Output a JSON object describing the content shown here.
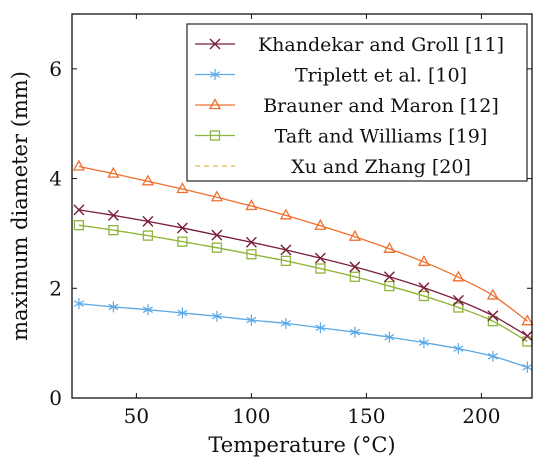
{
  "chart_data": {
    "type": "line",
    "xlabel": "Temperature (°C)",
    "ylabel": "maximum diameter (mm)",
    "xlim": [
      22,
      222
    ],
    "ylim": [
      0,
      7
    ],
    "xticks": [
      50,
      100,
      150,
      200
    ],
    "yticks": [
      0,
      2,
      4,
      6
    ],
    "grid": false,
    "legend_position": "top-right",
    "x": [
      25,
      40,
      55,
      70,
      85,
      100,
      115,
      130,
      145,
      160,
      175,
      190,
      205,
      220
    ],
    "series": [
      {
        "name": "Khandekar and Groll [11]",
        "color": "#7b1e3a",
        "marker": "x",
        "values": [
          3.43,
          3.33,
          3.22,
          3.1,
          2.97,
          2.84,
          2.7,
          2.55,
          2.39,
          2.21,
          2.01,
          1.78,
          1.5,
          1.13
        ]
      },
      {
        "name": "Triplett et al. [10]",
        "color": "#5aa9e6",
        "marker": "star",
        "values": [
          1.72,
          1.66,
          1.61,
          1.55,
          1.49,
          1.42,
          1.36,
          1.28,
          1.2,
          1.11,
          1.01,
          0.9,
          0.76,
          0.56
        ]
      },
      {
        "name": "Brauner and Maron [12]",
        "color": "#ef6f2e",
        "marker": "triangle",
        "values": [
          4.22,
          4.09,
          3.95,
          3.81,
          3.66,
          3.5,
          3.33,
          3.14,
          2.94,
          2.72,
          2.48,
          2.2,
          1.87,
          1.4
        ]
      },
      {
        "name": "Taft and Williams [19]",
        "color": "#8cb63c",
        "marker": "square",
        "values": [
          3.15,
          3.06,
          2.96,
          2.85,
          2.74,
          2.62,
          2.5,
          2.36,
          2.21,
          2.04,
          1.86,
          1.65,
          1.4,
          1.03
        ]
      },
      {
        "name": "Xu and Zhang [20]",
        "color": "#f5b540",
        "marker": "none",
        "dashed": true,
        "values": [
          3.15,
          3.06,
          2.96,
          2.85,
          2.74,
          2.62,
          2.5,
          2.36,
          2.21,
          2.04,
          1.86,
          1.65,
          1.4,
          1.03
        ]
      }
    ]
  }
}
